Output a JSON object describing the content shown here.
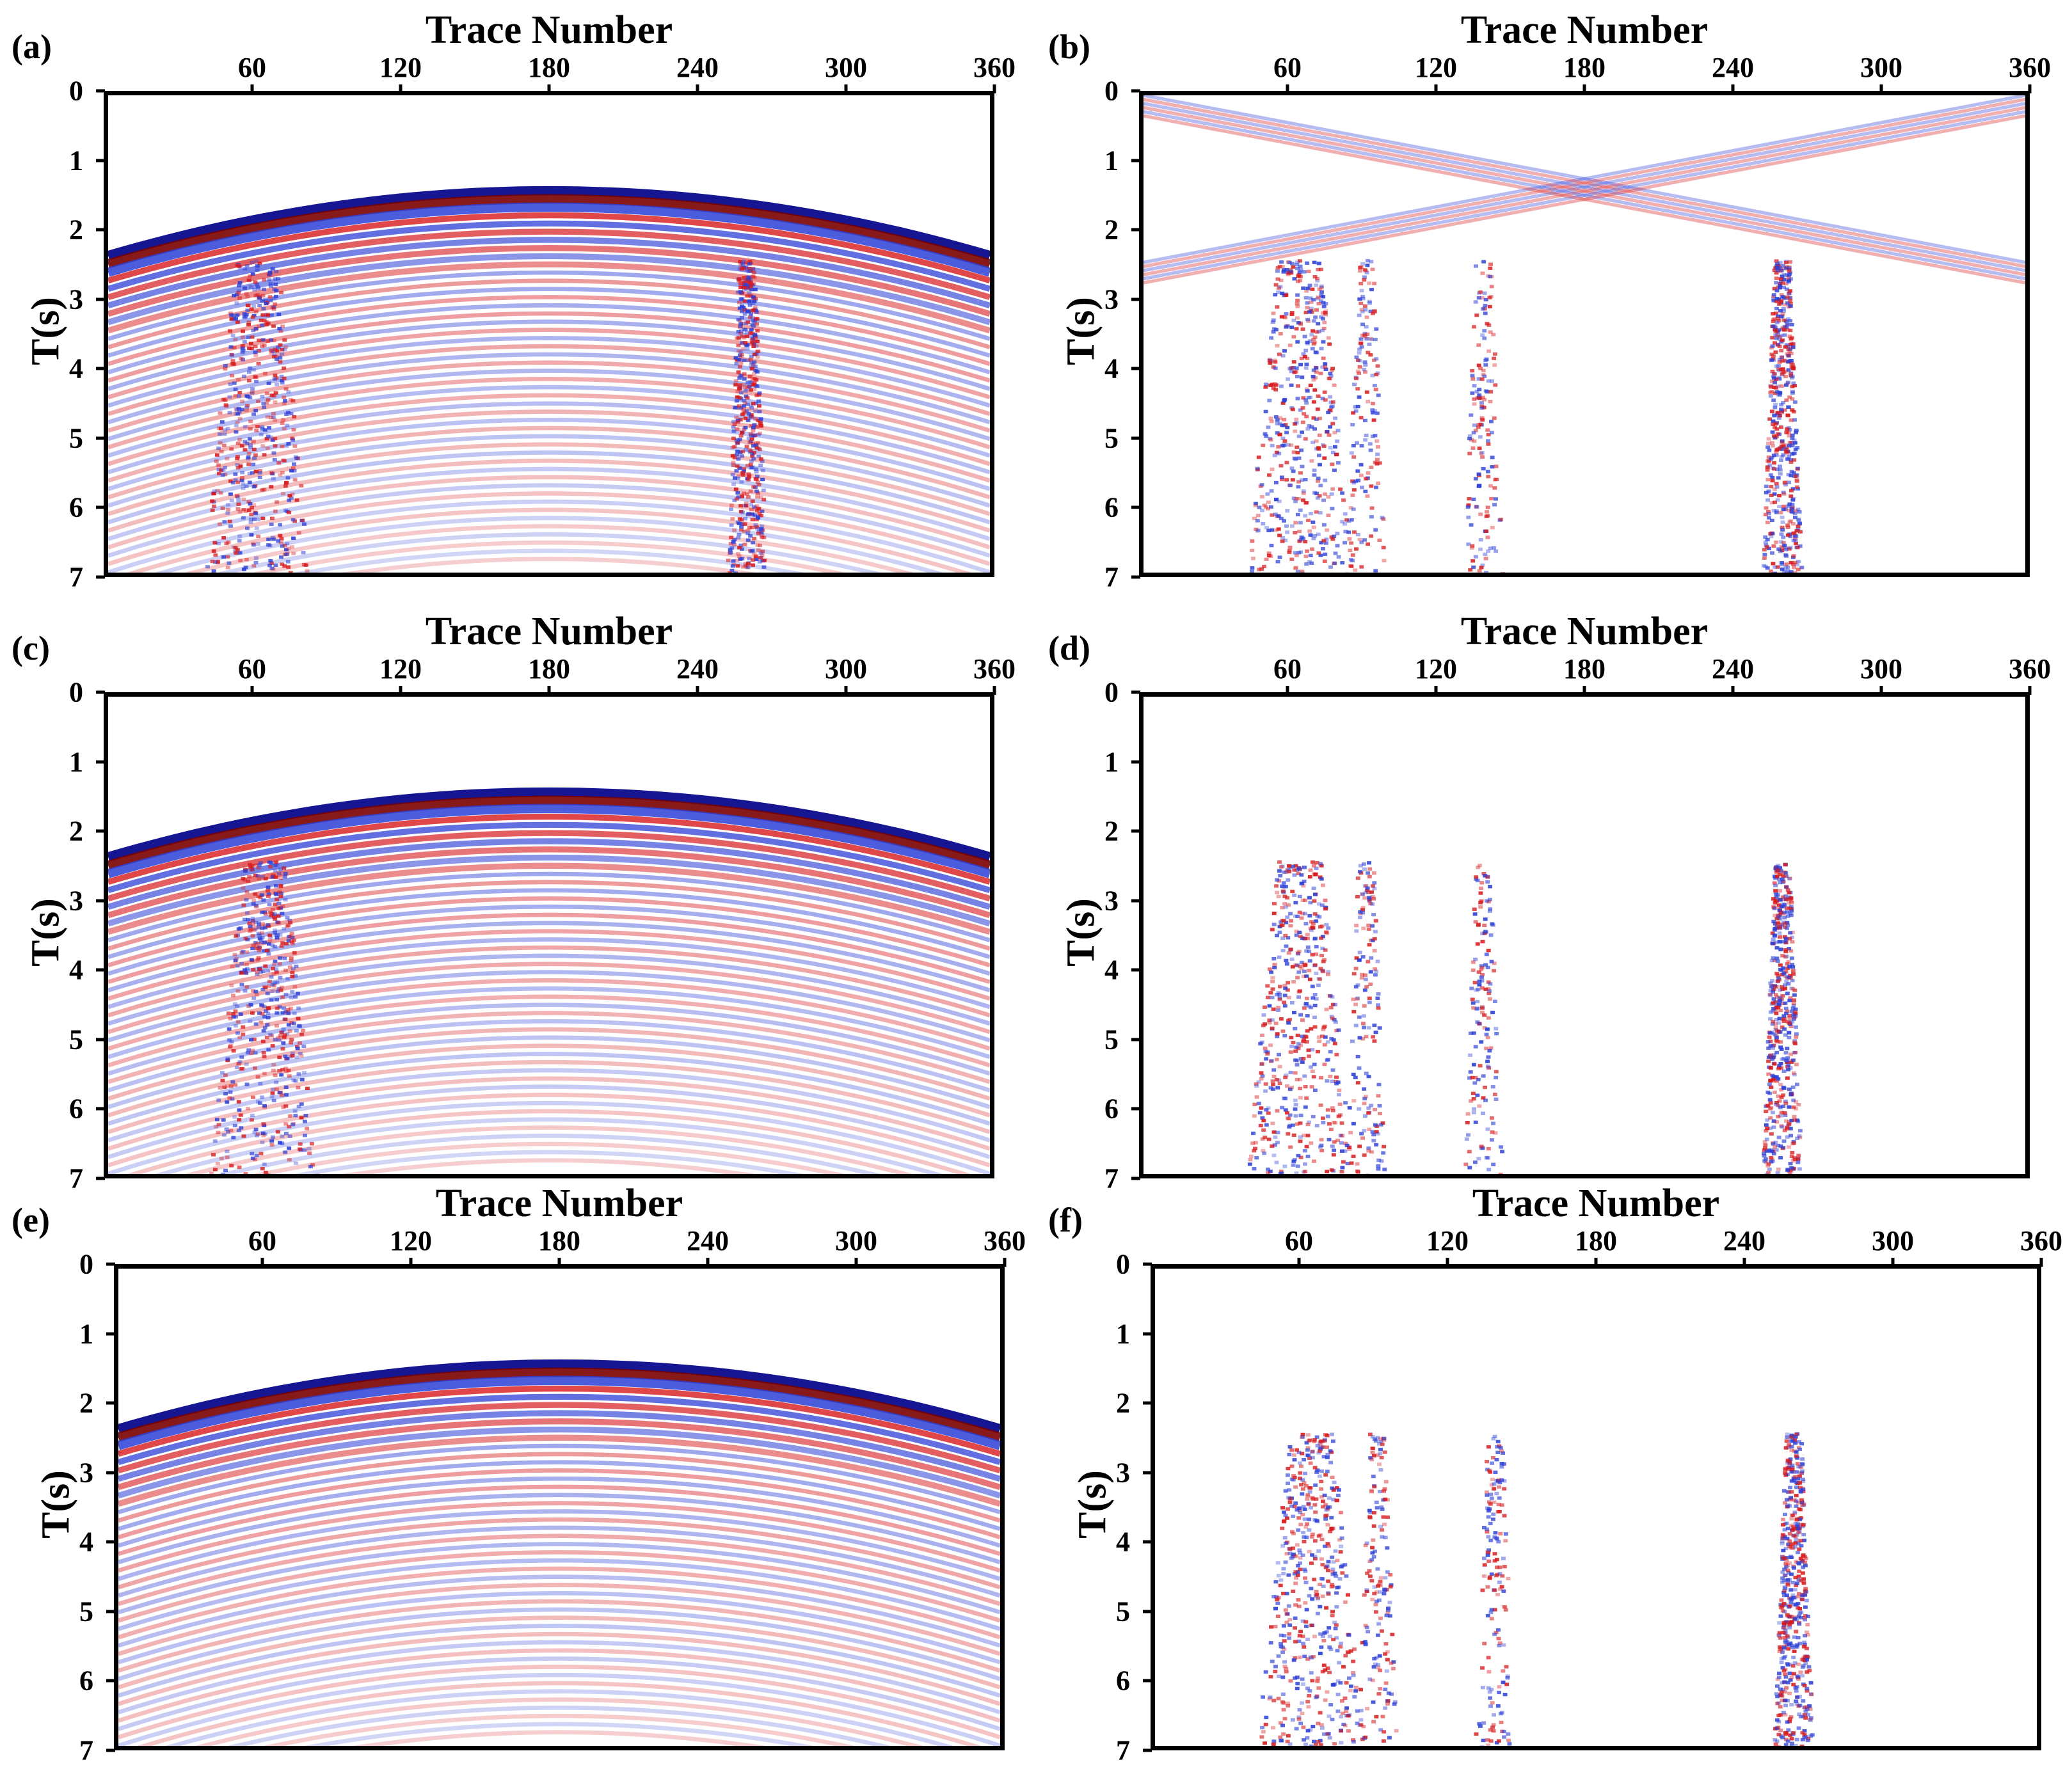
{
  "colors": {
    "red": "#d7191c",
    "dark_red": "#7a0000",
    "blue": "#2c3fd6",
    "dark_blue": "#0a0a8c"
  },
  "chart_data": [
    {
      "id": "a",
      "panel_label": "(a)",
      "type": "heatmap",
      "title": "",
      "xlabel": "Trace Number",
      "ylabel": "T(s)",
      "xticks": [
        "60",
        "120",
        "180",
        "240",
        "300",
        "360"
      ],
      "yticks": [
        "0",
        "1",
        "2",
        "3",
        "4",
        "5",
        "6",
        "7"
      ],
      "xlim": [
        0,
        360
      ],
      "ylim": [
        0,
        7
      ],
      "colormap": "seismic (blue-white-red)",
      "content": "hyperbolic reflections, apex near trace 180 at 1.4 s, edges at 2.3 s; vertical noise near traces 60 and 260",
      "events": {
        "apex_trace": 180,
        "apex_time": 1.4,
        "edge_time": 2.35,
        "noise_traces": [
          60,
          260
        ]
      }
    },
    {
      "id": "b",
      "panel_label": "(b)",
      "type": "heatmap",
      "title": "",
      "xlabel": "Trace Number",
      "ylabel": "T(s)",
      "xticks": [
        "60",
        "120",
        "180",
        "240",
        "300",
        "360"
      ],
      "yticks": [
        "0",
        "1",
        "2",
        "3",
        "4",
        "5",
        "6",
        "7"
      ],
      "xlim": [
        0,
        360
      ],
      "ylim": [
        0,
        7
      ],
      "colormap": "seismic (blue-white-red)",
      "content": "residual noise: strong bursts at traces 60 and 260 from 2.4 s, weaker at 90 and 140; linear crossing events meeting at 2.4 s at panel edges",
      "events": {
        "noise_traces": [
          63,
          90,
          138,
          260
        ],
        "linear_cross_time": 2.45
      }
    },
    {
      "id": "c",
      "panel_label": "(c)",
      "type": "heatmap",
      "title": "",
      "xlabel": "Trace Number",
      "ylabel": "T(s)",
      "xticks": [
        "60",
        "120",
        "180",
        "240",
        "300",
        "360"
      ],
      "yticks": [
        "0",
        "1",
        "2",
        "3",
        "4",
        "5",
        "6",
        "7"
      ],
      "xlim": [
        0,
        360
      ],
      "ylim": [
        0,
        7
      ],
      "colormap": "seismic (blue-white-red)",
      "content": "denoised hyperbolic reflections, apex near trace 180 at 1.4 s; faint remnant near trace 63 at 6-7 s",
      "events": {
        "apex_trace": 180,
        "apex_time": 1.4,
        "edge_time": 2.35,
        "noise_traces": [
          63
        ]
      }
    },
    {
      "id": "d",
      "panel_label": "(d)",
      "type": "heatmap",
      "title": "",
      "xlabel": "Trace Number",
      "ylabel": "T(s)",
      "xticks": [
        "60",
        "120",
        "180",
        "240",
        "300",
        "360"
      ],
      "yticks": [
        "0",
        "1",
        "2",
        "3",
        "4",
        "5",
        "6",
        "7"
      ],
      "xlim": [
        0,
        360
      ],
      "ylim": [
        0,
        7
      ],
      "colormap": "seismic (blue-white-red)",
      "content": "removed noise: bursts at traces 63, 90, 138 and 260",
      "events": {
        "noise_traces": [
          63,
          90,
          138,
          260
        ]
      }
    },
    {
      "id": "e",
      "panel_label": "(e)",
      "type": "heatmap",
      "title": "",
      "xlabel": "Trace Number",
      "ylabel": "T(s)",
      "xticks": [
        "60",
        "120",
        "180",
        "240",
        "300",
        "360"
      ],
      "yticks": [
        "0",
        "1",
        "2",
        "3",
        "4",
        "5",
        "6",
        "7"
      ],
      "xlim": [
        0,
        360
      ],
      "ylim": [
        0,
        7
      ],
      "colormap": "seismic (blue-white-red)",
      "content": "denoised hyperbolic reflections, apex near trace 180 at 1.4 s",
      "events": {
        "apex_trace": 180,
        "apex_time": 1.4,
        "edge_time": 2.35,
        "noise_traces": []
      }
    },
    {
      "id": "f",
      "panel_label": "(f)",
      "type": "heatmap",
      "title": "",
      "xlabel": "Trace Number",
      "ylabel": "T(s)",
      "xticks": [
        "60",
        "120",
        "180",
        "240",
        "300",
        "360"
      ],
      "yticks": [
        "0",
        "1",
        "2",
        "3",
        "4",
        "5",
        "6",
        "7"
      ],
      "xlim": [
        0,
        360
      ],
      "ylim": [
        0,
        7
      ],
      "colormap": "seismic (blue-white-red)",
      "content": "removed noise: bursts at traces 63, 90, 138 and 260",
      "events": {
        "noise_traces": [
          63,
          90,
          138,
          260
        ]
      }
    }
  ]
}
